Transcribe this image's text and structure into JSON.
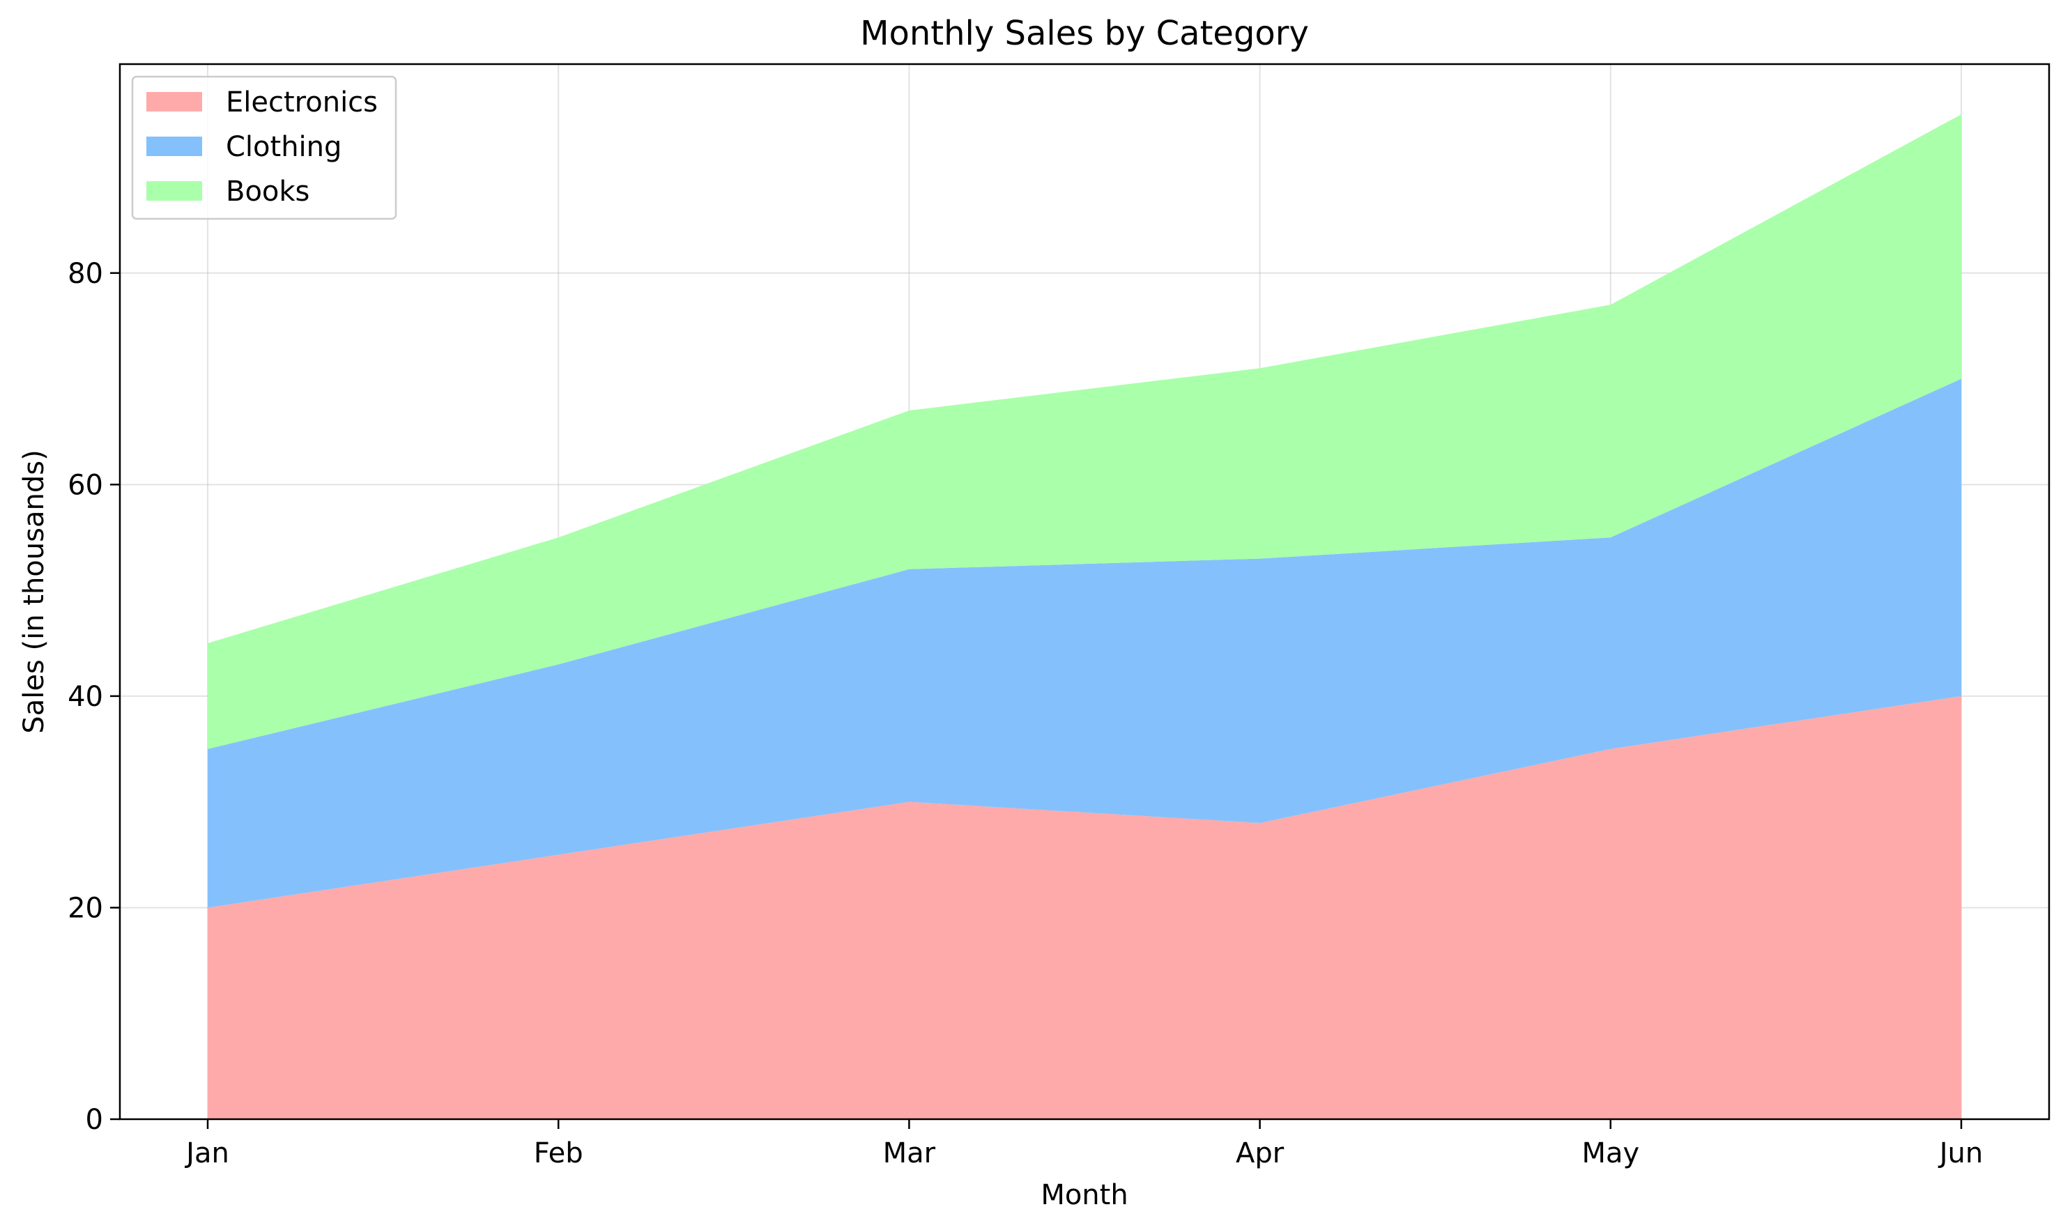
{
  "chart_data": {
    "type": "area",
    "stacked": true,
    "title": "Monthly Sales by Category",
    "xlabel": "Month",
    "ylabel": "Sales (in thousands)",
    "categories": [
      "Jan",
      "Feb",
      "Mar",
      "Apr",
      "May",
      "Jun"
    ],
    "series": [
      {
        "name": "Electronics",
        "values": [
          20,
          25,
          30,
          28,
          35,
          40
        ],
        "color": "#ffaaaa"
      },
      {
        "name": "Clothing",
        "values": [
          15,
          18,
          22,
          25,
          20,
          30
        ],
        "color": "#84c1fc"
      },
      {
        "name": "Books",
        "values": [
          10,
          12,
          15,
          18,
          22,
          25
        ],
        "color": "#aaffaa"
      }
    ],
    "ylim": [
      0,
      99.75
    ],
    "yticks": [
      0,
      20,
      40,
      60,
      80
    ],
    "grid": true,
    "legend_position": "top-left"
  }
}
